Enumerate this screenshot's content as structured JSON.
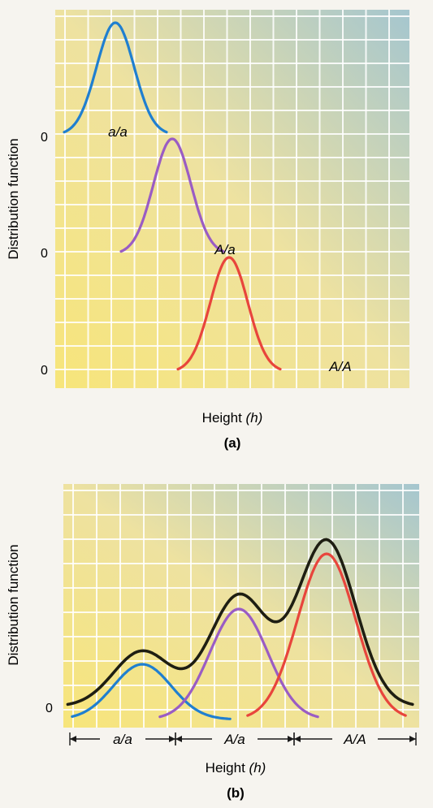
{
  "panel_a": {
    "ylabel": "Distribution function",
    "xlabel_text": "Height ",
    "xlabel_var": "(h)",
    "caption": "(a)",
    "baseline_labels": [
      "0",
      "0",
      "0"
    ],
    "genotype_labels": [
      "a/a",
      "A/a",
      "A/A"
    ]
  },
  "panel_b": {
    "ylabel": "Distribution function",
    "xlabel_text": "Height ",
    "xlabel_var": "(h)",
    "caption": "(b)",
    "baseline_label": "0",
    "range_labels": [
      "a/a",
      "A/a",
      "A/A"
    ]
  },
  "colors": {
    "aa": "#1f7fd0",
    "Aa": "#9a5cc4",
    "AA": "#e8453c",
    "total": "#1e1e12",
    "grid": "#ffffff",
    "bg_top_right": "#9fc3cf",
    "bg_bottom_left": "#f6e27a"
  },
  "chart_data": [
    {
      "type": "line",
      "title": "",
      "xlabel": "Height (h)",
      "ylabel": "Distribution function",
      "layout": "stacked rows, one curve per row, each with its own 0 baseline",
      "grid": true,
      "series": [
        {
          "name": "a/a",
          "color": "#1f7fd0",
          "mean": 1.0,
          "sd": 0.33,
          "peak": 1.0,
          "range": [
            0.1,
            1.9
          ]
        },
        {
          "name": "A/a",
          "color": "#9a5cc4",
          "mean": 2.0,
          "sd": 0.33,
          "peak": 1.0,
          "range": [
            1.1,
            2.9
          ]
        },
        {
          "name": "A/A",
          "color": "#e8453c",
          "mean": 3.0,
          "sd": 0.33,
          "peak": 1.0,
          "range": [
            2.1,
            3.9
          ]
        }
      ]
    },
    {
      "type": "line",
      "title": "",
      "xlabel": "Height (h)",
      "ylabel": "Distribution function",
      "grid": true,
      "series": [
        {
          "name": "a/a",
          "color": "#1f7fd0",
          "mean": 0.9,
          "sd": 0.33,
          "peak": 0.25,
          "range": [
            0.1,
            1.9
          ]
        },
        {
          "name": "A/a",
          "color": "#9a5cc4",
          "mean": 2.0,
          "sd": 0.33,
          "peak": 0.5,
          "range": [
            1.1,
            2.9
          ]
        },
        {
          "name": "A/A",
          "color": "#e8453c",
          "mean": 3.0,
          "sd": 0.33,
          "peak": 0.75,
          "range": [
            2.1,
            3.9
          ]
        },
        {
          "name": "total",
          "color": "#1e1e12",
          "components": [
            "a/a",
            "A/a",
            "A/A"
          ]
        }
      ],
      "ranges": [
        {
          "label": "a/a",
          "from": 0.0,
          "to": 1.4
        },
        {
          "label": "A/a",
          "from": 1.4,
          "to": 2.5
        },
        {
          "label": "A/A",
          "from": 2.5,
          "to": 4.0
        }
      ],
      "xlim": [
        0.0,
        4.0
      ],
      "ylim": [
        0.0,
        1.0
      ]
    }
  ]
}
